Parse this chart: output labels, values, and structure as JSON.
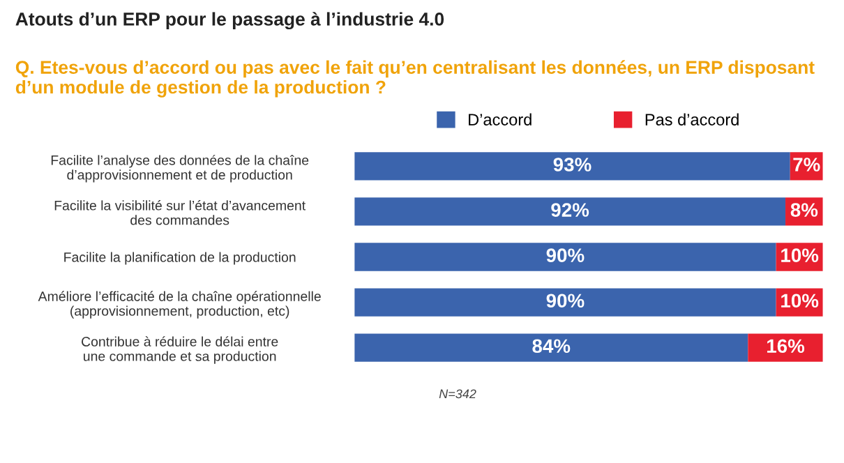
{
  "chart_data": {
    "type": "bar",
    "orientation": "horizontal",
    "stacked": true,
    "title": "Atouts d’un ERP pour le passage à l’industrie 4.0",
    "subtitle": "Q. Etes-vous d’accord ou pas avec le fait qu’en centralisant les données, un ERP disposant d’un module de gestion de la production ?",
    "categories": [
      "Facilite l’analyse des données de la chaîne\nd’approvisionnement et de production",
      "Facilite la visibilité sur l’état d’avancement\ndes commandes",
      "Facilite la planification de la production",
      "Améliore l’efficacité de la chaîne opérationnelle\n(approvisionnement, production, etc)",
      "Contribue à réduire le délai entre\nune commande et sa production"
    ],
    "series": [
      {
        "name": "D’accord",
        "color": "#3b64ad",
        "values": [
          93,
          92,
          90,
          90,
          84
        ],
        "value_labels": [
          "93%",
          "92%",
          "90%",
          "90%",
          "84%"
        ]
      },
      {
        "name": "Pas d’accord",
        "color": "#e8202f",
        "values": [
          7,
          8,
          10,
          10,
          16
        ],
        "value_labels": [
          "7%",
          "8%",
          "10%",
          "10%",
          "16%"
        ]
      }
    ],
    "legend": "top",
    "grid": false,
    "annotations": [
      "N=342"
    ]
  }
}
